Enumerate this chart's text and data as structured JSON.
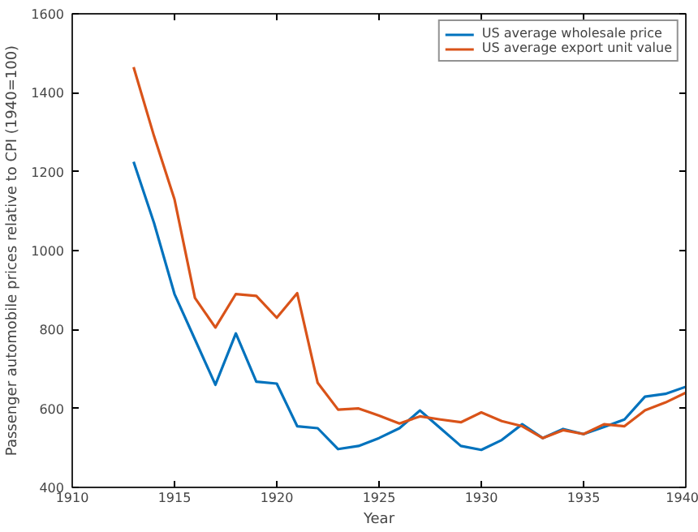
{
  "chart_data": {
    "type": "line",
    "xlabel": "Year",
    "ylabel": "Passenger automobile prices relative to CPI (1940=100)",
    "x": [
      1913,
      1914,
      1915,
      1916,
      1917,
      1918,
      1919,
      1920,
      1921,
      1922,
      1923,
      1924,
      1925,
      1926,
      1927,
      1928,
      1929,
      1930,
      1931,
      1932,
      1933,
      1934,
      1935,
      1936,
      1937,
      1938,
      1939,
      1940
    ],
    "series": [
      {
        "name": "US average wholesale price",
        "color": "#0072bd",
        "values": [
          1225,
          1070,
          890,
          775,
          660,
          790,
          668,
          663,
          555,
          550,
          497,
          505,
          525,
          550,
          595,
          550,
          505,
          495,
          520,
          560,
          525,
          548,
          535,
          553,
          572,
          630,
          637,
          655
        ]
      },
      {
        "name": "US average export unit value",
        "color": "#d95319",
        "values": [
          1465,
          1290,
          1130,
          880,
          805,
          890,
          885,
          830,
          892,
          665,
          597,
          600,
          582,
          562,
          580,
          572,
          565,
          590,
          568,
          555,
          525,
          545,
          535,
          560,
          555,
          595,
          615,
          640
        ]
      }
    ],
    "xlim": [
      1910,
      1940
    ],
    "xticks": [
      1910,
      1915,
      1920,
      1925,
      1930,
      1935,
      1940
    ],
    "ylim": [
      400,
      1600
    ],
    "yticks": [
      400,
      600,
      800,
      1000,
      1200,
      1400,
      1600
    ],
    "grid": false,
    "legend": "top right",
    "line_style": "solid",
    "marker": "none"
  }
}
